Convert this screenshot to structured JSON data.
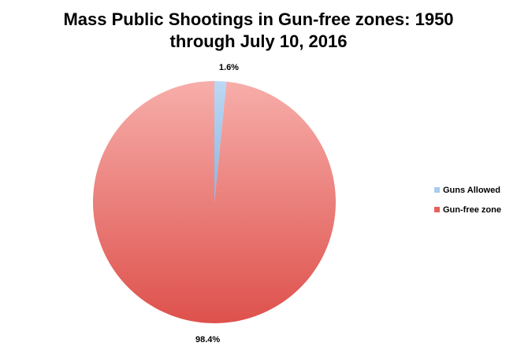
{
  "chart_data": {
    "type": "pie",
    "title": "Mass Public Shootings in Gun-free zones: 1950 through July 10, 2016",
    "title_lines": [
      "Mass Public Shootings in Gun-free zones: 1950",
      "through July 10, 2016"
    ],
    "series": [
      {
        "name": "Guns Allowed",
        "value": 1.6,
        "label": "1.6%",
        "color": "#a9cbed"
      },
      {
        "name": "Gun-free zone",
        "value": 98.4,
        "label": "98.4%",
        "color": "#e8625d"
      }
    ],
    "legend_position": "right"
  }
}
